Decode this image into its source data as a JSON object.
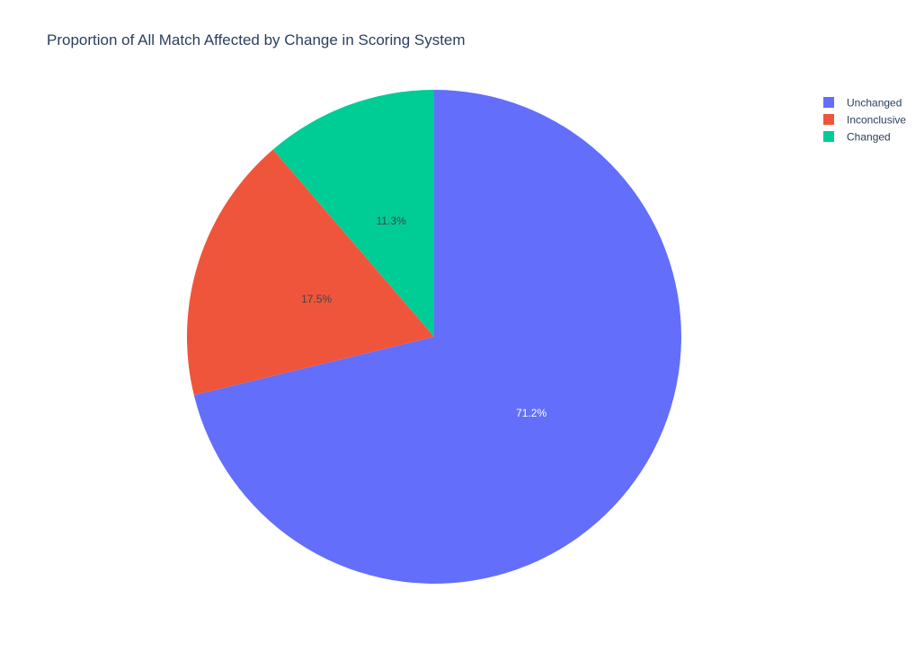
{
  "chart_data": {
    "type": "pie",
    "title": "Proportion of All Match Affected by Change in Scoring System",
    "categories": [
      "Unchanged",
      "Inconclusive",
      "Changed"
    ],
    "values": [
      71.2,
      17.5,
      11.3
    ],
    "value_labels": [
      "71.2%",
      "17.5%",
      "11.3%"
    ],
    "colors": [
      "#636efa",
      "#ef553b",
      "#00cc96"
    ],
    "label_colors": [
      "#ffffff",
      "#444444",
      "#444444"
    ],
    "direction": "clockwise",
    "start": "top",
    "legend_position": "top-right"
  }
}
